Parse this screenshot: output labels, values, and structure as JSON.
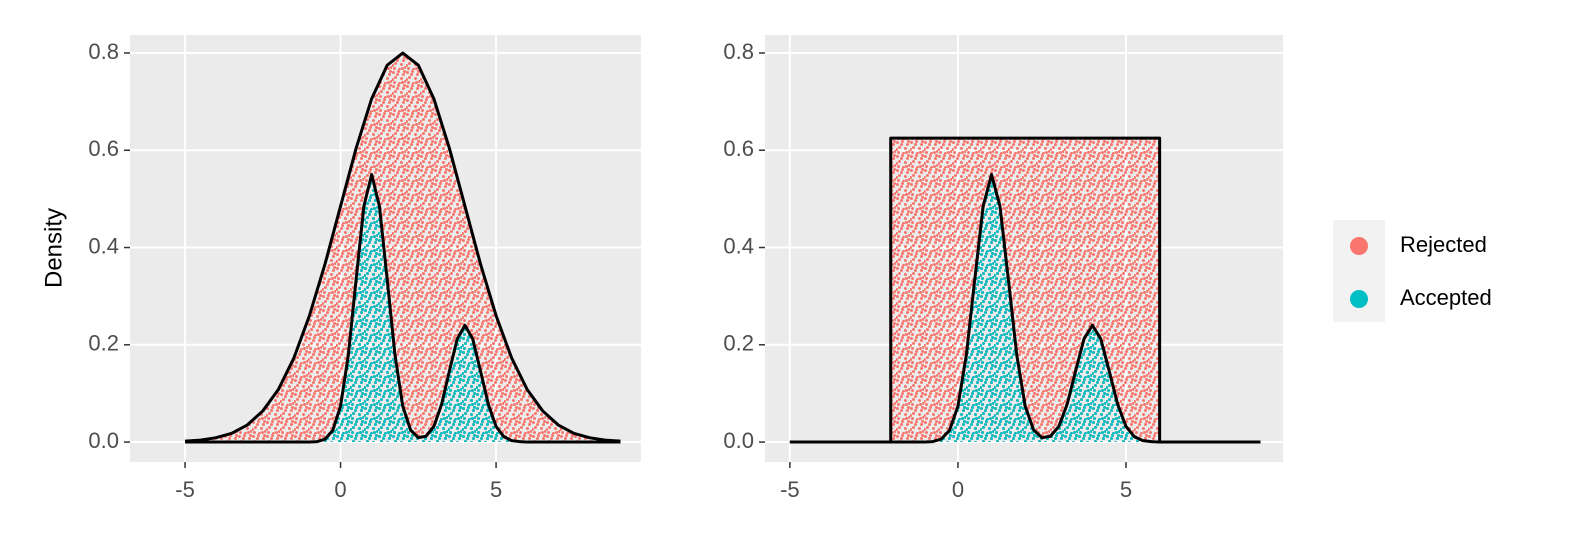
{
  "chart_data": [
    {
      "type": "area",
      "ylabel": "Density",
      "xlim": [
        -6.77,
        9.66
      ],
      "ylim": [
        -0.041,
        0.837
      ],
      "xticks": [
        -5,
        0,
        5
      ],
      "yticks": [
        {
          "value": 0,
          "label": "0.0"
        },
        {
          "value": 0.2,
          "label": "0.2"
        },
        {
          "value": 0.4,
          "label": "0.4"
        },
        {
          "value": 0.6,
          "label": "0.6"
        },
        {
          "value": 0.8,
          "label": "0.8"
        }
      ],
      "grid": true,
      "legend": "right",
      "series": [
        {
          "name": "Rejected",
          "color": "#F8766D",
          "x": [
            -5,
            -4.5,
            -4,
            -3.5,
            -3,
            -2.5,
            -2,
            -1.5,
            -1,
            -0.5,
            0,
            0.5,
            1,
            1.5,
            2,
            2.5,
            3,
            3.5,
            4,
            4.5,
            5,
            5.5,
            6,
            6.5,
            7,
            7.5,
            8,
            8.5,
            9
          ],
          "values": [
            0.002,
            0.004,
            0.009,
            0.018,
            0.035,
            0.064,
            0.108,
            0.173,
            0.26,
            0.366,
            0.485,
            0.604,
            0.706,
            0.775,
            0.8,
            0.775,
            0.706,
            0.604,
            0.485,
            0.366,
            0.26,
            0.173,
            0.108,
            0.064,
            0.035,
            0.018,
            0.009,
            0.004,
            0.002
          ]
        },
        {
          "name": "Accepted",
          "color": "#00BFC4",
          "x": [
            -5,
            -1,
            -0.75,
            -0.5,
            -0.25,
            0,
            0.25,
            0.5,
            0.75,
            1,
            1.25,
            1.5,
            1.75,
            2,
            2.25,
            2.5,
            2.75,
            3,
            3.25,
            3.5,
            3.75,
            4,
            4.25,
            4.5,
            4.75,
            5,
            5.25,
            5.5,
            5.75,
            6,
            9
          ],
          "values": [
            0,
            0,
            0.001,
            0.006,
            0.024,
            0.074,
            0.179,
            0.334,
            0.485,
            0.55,
            0.485,
            0.334,
            0.179,
            0.074,
            0.025,
            0.009,
            0.012,
            0.032,
            0.078,
            0.146,
            0.212,
            0.24,
            0.212,
            0.146,
            0.078,
            0.032,
            0.011,
            0.003,
            0.001,
            0,
            0
          ]
        }
      ]
    },
    {
      "type": "area",
      "xlim": [
        -5.74,
        9.67
      ],
      "ylim": [
        -0.041,
        0.837
      ],
      "xticks": [
        -5,
        0,
        5
      ],
      "yticks": [
        {
          "value": 0,
          "label": "0.0"
        },
        {
          "value": 0.2,
          "label": "0.2"
        },
        {
          "value": 0.4,
          "label": "0.4"
        },
        {
          "value": 0.6,
          "label": "0.6"
        },
        {
          "value": 0.8,
          "label": "0.8"
        }
      ],
      "grid": true,
      "series": [
        {
          "name": "Rejected",
          "color": "#F8766D",
          "x": [
            -5,
            -2,
            -2,
            6,
            6,
            9
          ],
          "values": [
            0,
            0,
            0.625,
            0.625,
            0,
            0
          ]
        },
        {
          "name": "Accepted",
          "color": "#00BFC4",
          "x": [
            -5,
            -1,
            -0.75,
            -0.5,
            -0.25,
            0,
            0.25,
            0.5,
            0.75,
            1,
            1.25,
            1.5,
            1.75,
            2,
            2.25,
            2.5,
            2.75,
            3,
            3.25,
            3.5,
            3.75,
            4,
            4.25,
            4.5,
            4.75,
            5,
            5.25,
            5.5,
            5.75,
            6,
            9
          ],
          "values": [
            0,
            0,
            0.001,
            0.006,
            0.024,
            0.074,
            0.179,
            0.334,
            0.485,
            0.55,
            0.485,
            0.334,
            0.179,
            0.074,
            0.025,
            0.009,
            0.012,
            0.032,
            0.078,
            0.146,
            0.212,
            0.24,
            0.212,
            0.146,
            0.078,
            0.032,
            0.011,
            0.003,
            0.001,
            0,
            0
          ]
        }
      ]
    }
  ]
}
